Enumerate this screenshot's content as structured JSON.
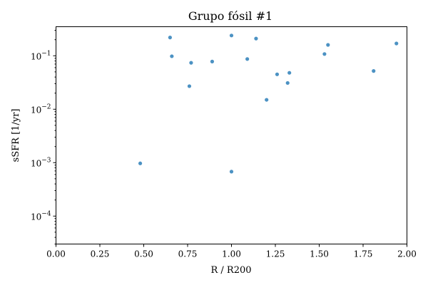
{
  "chart_data": {
    "type": "scatter",
    "title": "Grupo fósil #1",
    "xlabel": "R / R200",
    "ylabel": "sSFR [1/yr]",
    "xlim": [
      0.0,
      2.0
    ],
    "ylim": [
      3e-05,
      0.35
    ],
    "yscale": "log",
    "grid": false,
    "xticks": [
      0.0,
      0.25,
      0.5,
      0.75,
      1.0,
      1.25,
      1.5,
      1.75,
      2.0
    ],
    "xtick_labels": [
      "0.00",
      "0.25",
      "0.50",
      "0.75",
      "1.00",
      "1.25",
      "1.50",
      "1.75",
      "2.00"
    ],
    "yticks": [
      0.0001,
      0.001,
      0.01,
      0.1
    ],
    "ytick_labels": [
      {
        "base": "10",
        "exp": "−4"
      },
      {
        "base": "10",
        "exp": "−3"
      },
      {
        "base": "10",
        "exp": "−2"
      },
      {
        "base": "10",
        "exp": "−1"
      }
    ],
    "color": "#1f77b4",
    "series": [
      {
        "points": [
          {
            "x": 0.48,
            "y": 0.00097
          },
          {
            "x": 0.65,
            "y": 0.22
          },
          {
            "x": 0.66,
            "y": 0.098
          },
          {
            "x": 0.76,
            "y": 0.027
          },
          {
            "x": 0.77,
            "y": 0.074
          },
          {
            "x": 0.89,
            "y": 0.078
          },
          {
            "x": 1.0,
            "y": 0.24
          },
          {
            "x": 1.0,
            "y": 0.00068
          },
          {
            "x": 1.09,
            "y": 0.087
          },
          {
            "x": 1.14,
            "y": 0.21
          },
          {
            "x": 1.2,
            "y": 0.015
          },
          {
            "x": 1.26,
            "y": 0.045
          },
          {
            "x": 1.32,
            "y": 0.031
          },
          {
            "x": 1.33,
            "y": 0.048
          },
          {
            "x": 1.53,
            "y": 0.108
          },
          {
            "x": 1.55,
            "y": 0.16
          },
          {
            "x": 1.81,
            "y": 0.052
          },
          {
            "x": 1.94,
            "y": 0.17
          }
        ]
      }
    ]
  }
}
